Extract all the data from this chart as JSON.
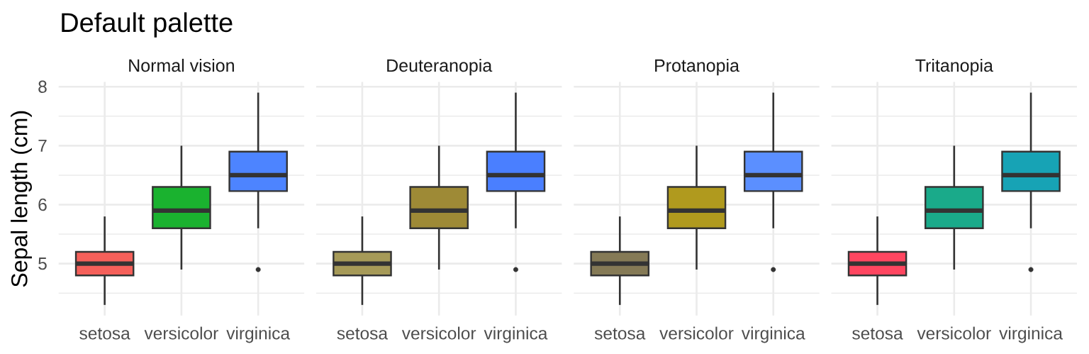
{
  "chart_data": [
    {
      "type": "box",
      "title": "Default palette",
      "subtitle": "Normal vision",
      "ylabel": "Sepal length (cm)",
      "categories": [
        "setosa",
        "versicolor",
        "virginica"
      ],
      "colors": [
        "#f5605a",
        "#1ab22f",
        "#4d84ff"
      ],
      "boxes": [
        {
          "low": 4.3,
          "q1": 4.8,
          "median": 5.0,
          "q3": 5.2,
          "high": 5.8
        },
        {
          "low": 4.9,
          "q1": 5.6,
          "median": 5.9,
          "q3": 6.3,
          "high": 7.0
        },
        {
          "low": 5.6,
          "q1": 6.23,
          "median": 6.5,
          "q3": 6.9,
          "high": 7.9,
          "outliers": [
            4.9
          ]
        }
      ],
      "ylim": [
        4.12,
        8.08
      ],
      "yticks": [
        {
          "value": 4.5,
          "label": null
        },
        5,
        {
          "value": 5.5,
          "label": null
        },
        6,
        {
          "value": 6.5,
          "label": null
        },
        7,
        {
          "value": 7.5,
          "label": null
        },
        8
      ],
      "grid": true
    },
    {
      "type": "box",
      "subtitle": "Deuteranopia",
      "categories": [
        "setosa",
        "versicolor",
        "virginica"
      ],
      "colors": [
        "#a69a58",
        "#9e8a36",
        "#4a7fff"
      ],
      "boxes": [
        {
          "low": 4.3,
          "q1": 4.8,
          "median": 5.0,
          "q3": 5.2,
          "high": 5.8
        },
        {
          "low": 4.9,
          "q1": 5.6,
          "median": 5.9,
          "q3": 6.3,
          "high": 7.0
        },
        {
          "low": 5.6,
          "q1": 6.23,
          "median": 6.5,
          "q3": 6.9,
          "high": 7.9,
          "outliers": [
            4.9
          ]
        }
      ],
      "ylim": [
        4.12,
        8.08
      ],
      "yticks": [
        {
          "value": 4.5,
          "label": null
        },
        5,
        {
          "value": 5.5,
          "label": null
        },
        6,
        {
          "value": 6.5,
          "label": null
        },
        7,
        {
          "value": 7.5,
          "label": null
        },
        8
      ],
      "grid": true,
      "tick_labels": "x"
    },
    {
      "type": "box",
      "subtitle": "Protanopia",
      "categories": [
        "setosa",
        "versicolor",
        "virginica"
      ],
      "colors": [
        "#857a56",
        "#b09a1e",
        "#5b8fff"
      ],
      "boxes": [
        {
          "low": 4.3,
          "q1": 4.8,
          "median": 5.0,
          "q3": 5.2,
          "high": 5.8
        },
        {
          "low": 4.9,
          "q1": 5.6,
          "median": 5.9,
          "q3": 6.3,
          "high": 7.0
        },
        {
          "low": 5.6,
          "q1": 6.23,
          "median": 6.5,
          "q3": 6.9,
          "high": 7.9,
          "outliers": [
            4.9
          ]
        }
      ],
      "ylim": [
        4.12,
        8.08
      ],
      "yticks": [
        {
          "value": 4.5,
          "label": null
        },
        5,
        {
          "value": 5.5,
          "label": null
        },
        6,
        {
          "value": 6.5,
          "label": null
        },
        7,
        {
          "value": 7.5,
          "label": null
        },
        8
      ],
      "grid": true,
      "tick_labels": "x"
    },
    {
      "type": "box",
      "subtitle": "Tritanopia",
      "categories": [
        "setosa",
        "versicolor",
        "virginica"
      ],
      "colors": [
        "#ff4660",
        "#1aaa8a",
        "#17a3b5"
      ],
      "boxes": [
        {
          "low": 4.3,
          "q1": 4.8,
          "median": 5.0,
          "q3": 5.2,
          "high": 5.8
        },
        {
          "low": 4.9,
          "q1": 5.6,
          "median": 5.9,
          "q3": 6.3,
          "high": 7.0
        },
        {
          "low": 5.6,
          "q1": 6.23,
          "median": 6.5,
          "q3": 6.9,
          "high": 7.9,
          "outliers": [
            4.9
          ]
        }
      ],
      "ylim": [
        4.12,
        8.08
      ],
      "yticks": [
        {
          "value": 4.5,
          "label": null
        },
        5,
        {
          "value": 5.5,
          "label": null
        },
        6,
        {
          "value": 6.5,
          "label": null
        },
        7,
        {
          "value": 7.5,
          "label": null
        },
        8
      ],
      "grid": true,
      "tick_labels": "x"
    }
  ]
}
